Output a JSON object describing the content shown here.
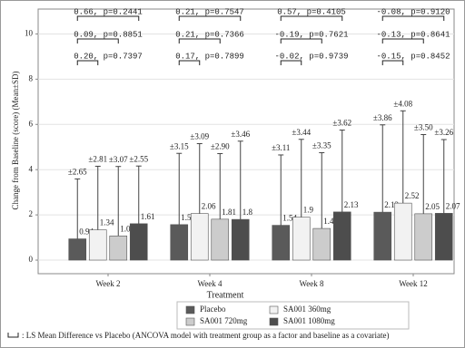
{
  "chart_data": {
    "type": "bar",
    "ylabel": "Change from Baseline (score) (Mean±SD)",
    "categories": [
      "Week 2",
      "Week 4",
      "Week 8",
      "Week 12"
    ],
    "series": [
      {
        "name": "Placebo",
        "color": "#5a5a5a",
        "values": [
          0.94,
          1.57,
          1.54,
          2.12
        ],
        "errors": [
          2.65,
          3.15,
          3.11,
          3.86
        ],
        "error_labels": [
          "±2.65",
          "±3.15",
          "±3.11",
          "±3.86"
        ]
      },
      {
        "name": "SA001 360mg",
        "color": "#f2f2f2",
        "values": [
          1.34,
          2.06,
          1.9,
          2.52
        ],
        "errors": [
          2.81,
          3.09,
          3.44,
          4.08
        ],
        "error_labels": [
          "±2.81",
          "±3.09",
          "±3.44",
          "±4.08"
        ]
      },
      {
        "name": "SA001 720mg",
        "color": "#cccccc",
        "values": [
          1.07,
          1.81,
          1.4,
          2.05
        ],
        "errors": [
          3.07,
          2.9,
          3.35,
          3.5
        ],
        "error_labels": [
          "±3.07",
          "±2.90",
          "±3.35",
          "±3.50"
        ]
      },
      {
        "name": "SA001 1080mg",
        "color": "#4d4d4d",
        "values": [
          1.61,
          1.8,
          2.13,
          2.07
        ],
        "errors": [
          2.55,
          3.46,
          3.62,
          3.26
        ],
        "error_labels": [
          "±2.55",
          "±3.46",
          "±3.62",
          "±3.26"
        ]
      }
    ],
    "comparisons": [
      [
        "0.66, p=0.2441",
        "0.09, p=0.8851",
        "0.20, p=0.7397"
      ],
      [
        "0.21, p=0.7547",
        "0.21, p=0.7366",
        "0.17, p=0.7899"
      ],
      [
        "0.57, p=0.4105",
        "-0.19, p=0.7621",
        "-0.02, p=0.9739"
      ],
      [
        "-0.08, p=0.9120",
        "-0.13, p=0.8641",
        "-0.15, p=0.8452"
      ]
    ],
    "ylim": [
      -0.6,
      11.1
    ],
    "yticks": [
      0,
      2,
      4,
      6,
      8,
      10
    ],
    "grid": true,
    "legend_title": "Treatment",
    "legend_position": "bottom",
    "footnote": ": LS Mean Difference vs Placebo (ANCOVA model with treatment group as a factor and baseline as a covariate)"
  }
}
